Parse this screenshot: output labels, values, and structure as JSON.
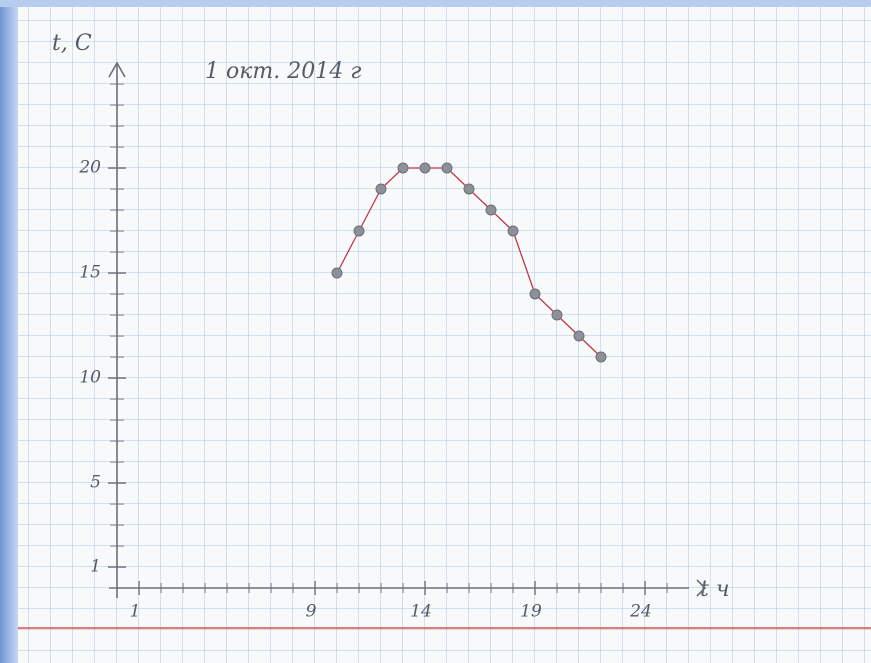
{
  "chart_data": {
    "type": "line",
    "title": "1 окт. 2014 г",
    "y_label": "t, C",
    "x_label": "t ч",
    "x": [
      10,
      11,
      12,
      13,
      14,
      15,
      16,
      17,
      18,
      19,
      20,
      21,
      22
    ],
    "series": [
      {
        "color": "#c0394a",
        "values": [
          15,
          17,
          19,
          20,
          20,
          20,
          19,
          18,
          17,
          14,
          13,
          12,
          11
        ]
      }
    ],
    "xlim": [
      0,
      26
    ],
    "xticks": [
      1,
      9,
      14,
      19,
      24
    ],
    "ylim": [
      0,
      25
    ],
    "yticks": [
      1,
      5,
      10,
      15,
      20
    ]
  }
}
